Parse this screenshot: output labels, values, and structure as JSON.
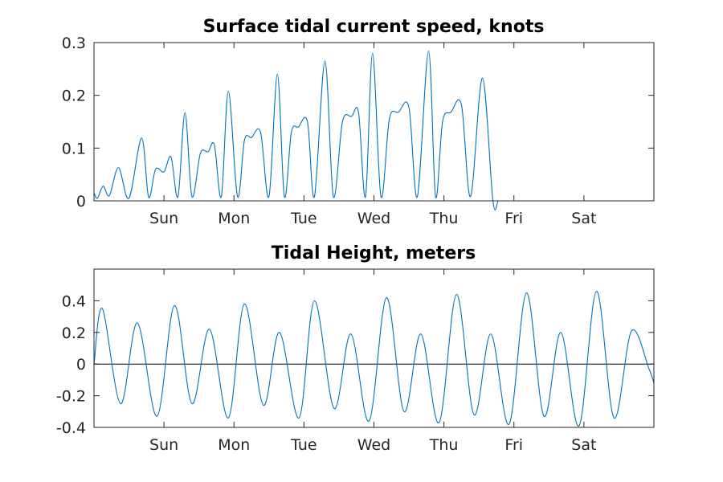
{
  "chart_data": [
    {
      "type": "line",
      "title": "Surface tidal current speed, knots",
      "xlabel": "",
      "ylabel": "",
      "xlim": [
        0,
        8
      ],
      "ylim": [
        0,
        0.3
      ],
      "x_ticks": [
        1,
        2,
        3,
        4,
        5,
        6,
        7
      ],
      "x_tick_labels": [
        "Sun",
        "Mon",
        "Tue",
        "Wed",
        "Thu",
        "Fri",
        "Sat"
      ],
      "y_ticks": [
        0,
        0.1,
        0.2,
        0.3
      ],
      "y_tick_labels": [
        "0",
        "0.1",
        "0.2",
        "0.3"
      ],
      "grid": false,
      "series": [
        {
          "name": "current speed",
          "color": "#0072bd",
          "x": [
            0,
            0.05,
            0.13,
            0.22,
            0.35,
            0.5,
            0.68,
            0.78,
            0.88,
            1.0,
            1.1,
            1.2,
            1.3,
            1.4,
            1.52,
            1.63,
            1.72,
            1.82,
            1.92,
            2.05,
            2.15,
            2.25,
            2.38,
            2.5,
            2.62,
            2.72,
            2.82,
            2.92,
            3.05,
            3.15,
            3.3,
            3.42,
            3.55,
            3.68,
            3.78,
            3.88,
            3.98,
            4.1,
            4.22,
            4.35,
            4.5,
            4.62,
            4.78,
            4.88,
            4.98,
            5.1,
            5.25,
            5.38,
            5.55,
            5.7,
            5.78,
            5.88,
            5.98,
            6.1,
            6.25,
            6.4,
            6.55,
            6.68,
            6.78,
            6.88,
            6.99,
            7.1,
            7.25,
            7.4,
            7.55,
            7.68,
            7.78,
            7.88,
            8.0
          ],
          "y": [
            0.015,
            0.005,
            0.028,
            0.01,
            0.063,
            0.005,
            0.119,
            0.007,
            0.06,
            0.055,
            0.083,
            0.008,
            0.167,
            0.008,
            0.09,
            0.093,
            0.106,
            0.008,
            0.208,
            0.008,
            0.115,
            0.12,
            0.13,
            0.008,
            0.24,
            0.008,
            0.13,
            0.14,
            0.15,
            0.008,
            0.265,
            0.008,
            0.15,
            0.16,
            0.167,
            0.008,
            0.28,
            0.008,
            0.155,
            0.168,
            0.177,
            0.008,
            0.284,
            0.008,
            0.15,
            0.168,
            0.182,
            0.008,
            0.233,
            0.0,
            0.0,
            0.0,
            0.0,
            0.0,
            0.0,
            0.0,
            0.0,
            0.0,
            0.0,
            0.0,
            0.0,
            0.0,
            0.0,
            0.0,
            0.0,
            0.0,
            0.0,
            0.0,
            0.0
          ]
        }
      ]
    },
    {
      "type": "line",
      "title": "Tidal Height, meters",
      "xlabel": "",
      "ylabel": "",
      "xlim": [
        0,
        8
      ],
      "ylim": [
        -0.4,
        0.6
      ],
      "x_ticks": [
        1,
        2,
        3,
        4,
        5,
        6,
        7
      ],
      "x_tick_labels": [
        "Sun",
        "Mon",
        "Tue",
        "Wed",
        "Thu",
        "Fri",
        "Sat"
      ],
      "y_ticks": [
        -0.4,
        -0.2,
        0,
        0.2,
        0.4
      ],
      "y_tick_labels": [
        "-0.4",
        "-0.2",
        "0",
        "0.2",
        "0.4"
      ],
      "grid": false,
      "zero_line": true,
      "series": [
        {
          "name": "tidal height",
          "color": "#0072bd",
          "x": [
            0,
            0.12,
            0.38,
            0.62,
            0.9,
            1.15,
            1.4,
            1.65,
            1.92,
            2.15,
            2.42,
            2.65,
            2.93,
            3.15,
            3.43,
            3.67,
            3.93,
            4.18,
            4.43,
            4.67,
            4.93,
            5.18,
            5.43,
            5.67,
            5.93,
            6.18,
            6.43,
            6.67,
            6.93,
            7.18,
            7.43,
            7.68,
            7.93,
            8.0
          ],
          "y": [
            0.0,
            0.35,
            -0.25,
            0.26,
            -0.33,
            0.37,
            -0.25,
            0.22,
            -0.34,
            0.38,
            -0.26,
            0.2,
            -0.34,
            0.4,
            -0.28,
            0.19,
            -0.36,
            0.42,
            -0.3,
            0.19,
            -0.37,
            0.44,
            -0.32,
            0.19,
            -0.38,
            0.45,
            -0.33,
            0.2,
            -0.39,
            0.46,
            -0.34,
            0.21,
            -0.03,
            -0.12
          ]
        }
      ]
    }
  ]
}
